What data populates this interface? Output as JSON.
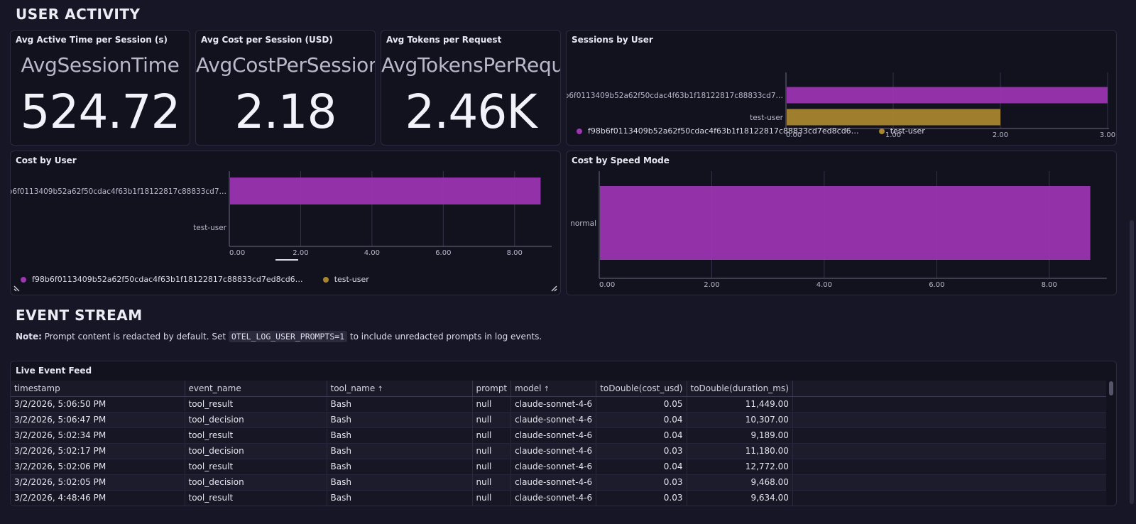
{
  "sections": {
    "user_activity": "USER ACTIVITY",
    "event_stream": "EVENT STREAM"
  },
  "stats": [
    {
      "title": "Avg Active Time per Session (s)",
      "name": "AvgSessionTime",
      "value": "524.72"
    },
    {
      "title": "Avg Cost per Session (USD)",
      "name": "AvgCostPerSession",
      "value": "2.18"
    },
    {
      "title": "Avg Tokens per Request",
      "name": "AvgTokensPerRequest",
      "value": "2.46K"
    }
  ],
  "colors": {
    "user1": "#9b35b0",
    "user2": "#a8862e"
  },
  "users": {
    "u1_long": "f98b6f0113409b52a62f50cdac4f63b1f18122817c88833cd7…",
    "u1_legend": "f98b6f0113409b52a62f50cdac4f63b1f18122817c88833cd7ed8cd6…",
    "u2": "test-user"
  },
  "sessions_panel": {
    "title": "Sessions by User",
    "chart_data": {
      "type": "bar",
      "orientation": "horizontal",
      "categories": [
        "f98b6f0113409b52a62f50cdac4f63b1f18122817c88833cd7…",
        "test-user"
      ],
      "values": [
        3.0,
        2.0
      ],
      "xlim": [
        0,
        3
      ],
      "ticks": [
        "0.00",
        "1.00",
        "2.00",
        "3.00"
      ],
      "grid": true,
      "legend": "bottom"
    }
  },
  "cost_user_panel": {
    "title": "Cost by User",
    "chart_data": {
      "type": "bar",
      "orientation": "horizontal",
      "categories": [
        "f98b6f0113409b52a62f50cdac4f63b1f18122817c88833cd7…",
        "test-user"
      ],
      "values": [
        8.73,
        0
      ],
      "xlim": [
        0,
        9
      ],
      "ticks": [
        "0.00",
        "2.00",
        "4.00",
        "6.00",
        "8.00"
      ],
      "grid": true,
      "legend": "bottom"
    }
  },
  "cost_speed_panel": {
    "title": "Cost by Speed Mode",
    "chart_data": {
      "type": "bar",
      "orientation": "horizontal",
      "categories": [
        "normal"
      ],
      "values": [
        8.73
      ],
      "xlim": [
        0,
        9
      ],
      "ticks": [
        "0.00",
        "2.00",
        "4.00",
        "6.00",
        "8.00"
      ],
      "grid": true
    }
  },
  "note": {
    "label": "Note:",
    "text1": " Prompt content is redacted by default. Set ",
    "code": "OTEL_LOG_USER_PROMPTS=1",
    "text2": " to include unredacted prompts in log events."
  },
  "feed": {
    "title": "Live Event Feed",
    "columns": [
      "timestamp",
      "event_name",
      "tool_name",
      "prompt",
      "model",
      "toDouble(cost_usd)",
      "toDouble(duration_ms)"
    ],
    "sort_arrow": "↑",
    "rows": [
      [
        "3/2/2026, 5:06:50 PM",
        "tool_result",
        "Bash",
        "null",
        "claude-sonnet-4-6",
        "0.05",
        "11,449.00"
      ],
      [
        "3/2/2026, 5:06:47 PM",
        "tool_decision",
        "Bash",
        "null",
        "claude-sonnet-4-6",
        "0.04",
        "10,307.00"
      ],
      [
        "3/2/2026, 5:02:34 PM",
        "tool_result",
        "Bash",
        "null",
        "claude-sonnet-4-6",
        "0.04",
        "9,189.00"
      ],
      [
        "3/2/2026, 5:02:17 PM",
        "tool_decision",
        "Bash",
        "null",
        "claude-sonnet-4-6",
        "0.03",
        "11,180.00"
      ],
      [
        "3/2/2026, 5:02:06 PM",
        "tool_result",
        "Bash",
        "null",
        "claude-sonnet-4-6",
        "0.04",
        "12,772.00"
      ],
      [
        "3/2/2026, 5:02:05 PM",
        "tool_decision",
        "Bash",
        "null",
        "claude-sonnet-4-6",
        "0.03",
        "9,468.00"
      ],
      [
        "3/2/2026, 4:48:46 PM",
        "tool_result",
        "Bash",
        "null",
        "claude-sonnet-4-6",
        "0.03",
        "9,634.00"
      ]
    ]
  }
}
